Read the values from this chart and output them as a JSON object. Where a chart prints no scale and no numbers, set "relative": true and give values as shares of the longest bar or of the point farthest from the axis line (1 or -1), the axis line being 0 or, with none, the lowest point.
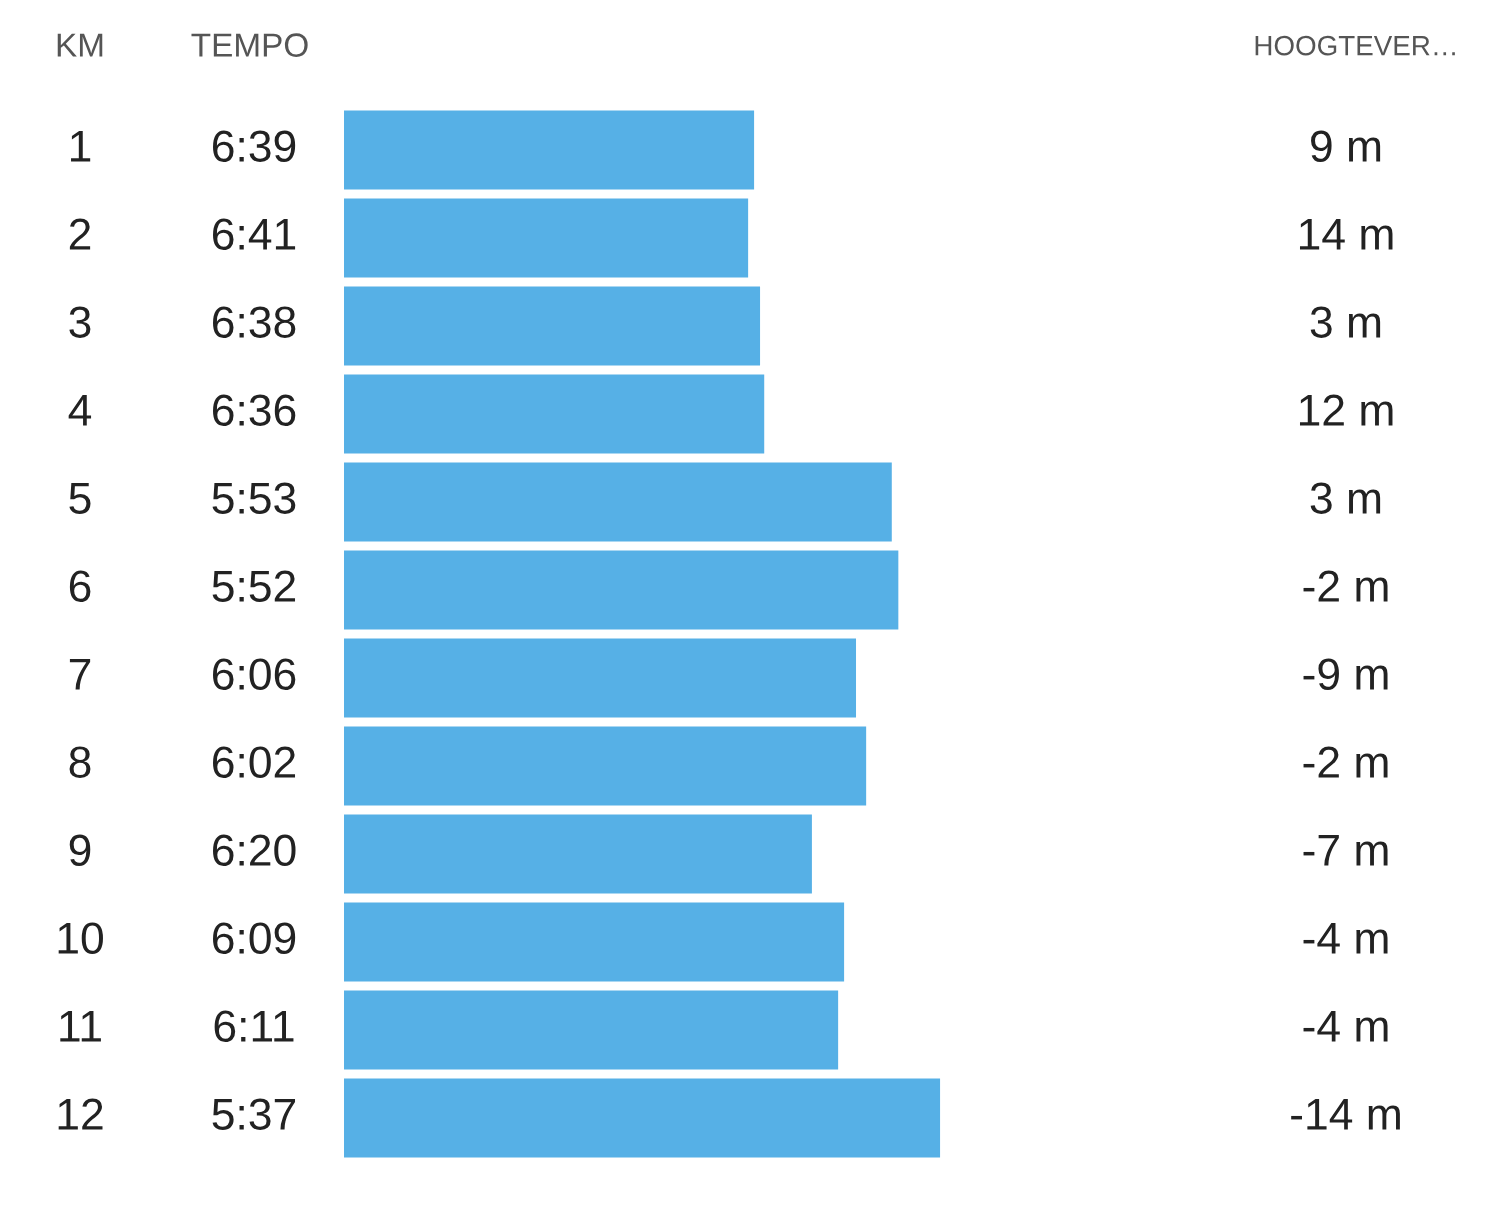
{
  "chart_data": {
    "type": "bar",
    "orientation": "horizontal",
    "relative": true,
    "ylabel": "KM",
    "categories": [
      "1",
      "2",
      "3",
      "4",
      "5",
      "6",
      "7",
      "8",
      "9",
      "10",
      "11",
      "12"
    ],
    "values": [
      0.688,
      0.678,
      0.698,
      0.705,
      0.919,
      0.93,
      0.859,
      0.876,
      0.785,
      0.839,
      0.829,
      1
    ],
    "tick_labels": "y",
    "color": "#56b0e6",
    "annotations": [
      "TEMPO",
      "HOOGTEVER…",
      "6:39",
      "9 m",
      "6:41",
      "14 m",
      "6:38",
      "3 m",
      "6:36",
      "12 m",
      "5:53",
      "3 m",
      "5:52",
      "-2 m",
      "6:06",
      "-9 m",
      "6:02",
      "-2 m",
      "6:20",
      "-7 m",
      "6:09",
      "-4 m",
      "6:11",
      "-4 m",
      "5:37",
      "-14 m"
    ]
  }
}
